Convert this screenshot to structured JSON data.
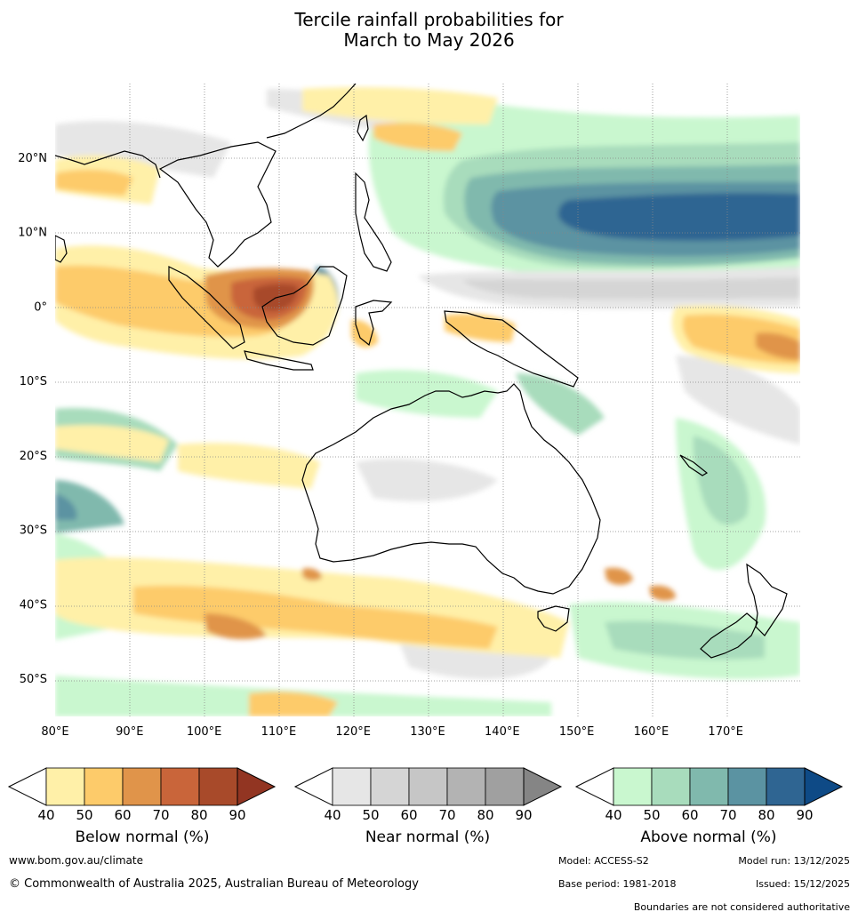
{
  "title": {
    "line1": "Tercile rainfall probabilities for",
    "line2": "March to May 2026"
  },
  "map": {
    "lon_range": [
      80,
      180
    ],
    "lat_range": [
      -55,
      30
    ],
    "lon_labels": [
      {
        "lon": 80,
        "text": "80°E"
      },
      {
        "lon": 90,
        "text": "90°E"
      },
      {
        "lon": 100,
        "text": "100°E"
      },
      {
        "lon": 110,
        "text": "110°E"
      },
      {
        "lon": 120,
        "text": "120°E"
      },
      {
        "lon": 130,
        "text": "130°E"
      },
      {
        "lon": 140,
        "text": "140°E"
      },
      {
        "lon": 150,
        "text": "150°E"
      },
      {
        "lon": 160,
        "text": "160°E"
      },
      {
        "lon": 170,
        "text": "170°E"
      }
    ],
    "lat_labels": [
      {
        "lat": 20,
        "text": "20°N"
      },
      {
        "lat": 10,
        "text": "10°N"
      },
      {
        "lat": 0,
        "text": "0°"
      },
      {
        "lat": -10,
        "text": "10°S"
      },
      {
        "lat": -20,
        "text": "20°S"
      },
      {
        "lat": -30,
        "text": "30°S"
      },
      {
        "lat": -40,
        "text": "40°S"
      },
      {
        "lat": -50,
        "text": "50°S"
      }
    ]
  },
  "colorbars": [
    {
      "name": "below",
      "label": "Below normal (%)",
      "ticks": [
        "40",
        "50",
        "60",
        "70",
        "80",
        "90"
      ],
      "colors": [
        "#fff0a8",
        "#fdcb6a",
        "#e0944a",
        "#c9653a",
        "#a84a2a",
        "#923522"
      ]
    },
    {
      "name": "near",
      "label": "Near normal (%)",
      "ticks": [
        "40",
        "50",
        "60",
        "70",
        "80",
        "90"
      ],
      "colors": [
        "#e6e6e6",
        "#d5d5d5",
        "#c6c6c6",
        "#b3b3b3",
        "#a0a0a0",
        "#858585"
      ]
    },
    {
      "name": "above",
      "label": "Above normal (%)",
      "ticks": [
        "40",
        "50",
        "60",
        "70",
        "80",
        "90"
      ],
      "colors": [
        "#c9f7cf",
        "#a8dcbc",
        "#80b9ad",
        "#5b93a2",
        "#2f6592",
        "#0e4a86"
      ]
    }
  ],
  "footer": {
    "url": "www.bom.gov.au/climate",
    "copyright": "© Commonwealth of Australia 2025, Australian Bureau of Meteorology",
    "model": "Model: ACCESS-S2",
    "model_run": "Model run: 13/12/2025",
    "base_period": "Base period: 1981-2018",
    "issued": "Issued: 15/12/2025",
    "boundaries_note": "Boundaries are not considered authoritative"
  }
}
